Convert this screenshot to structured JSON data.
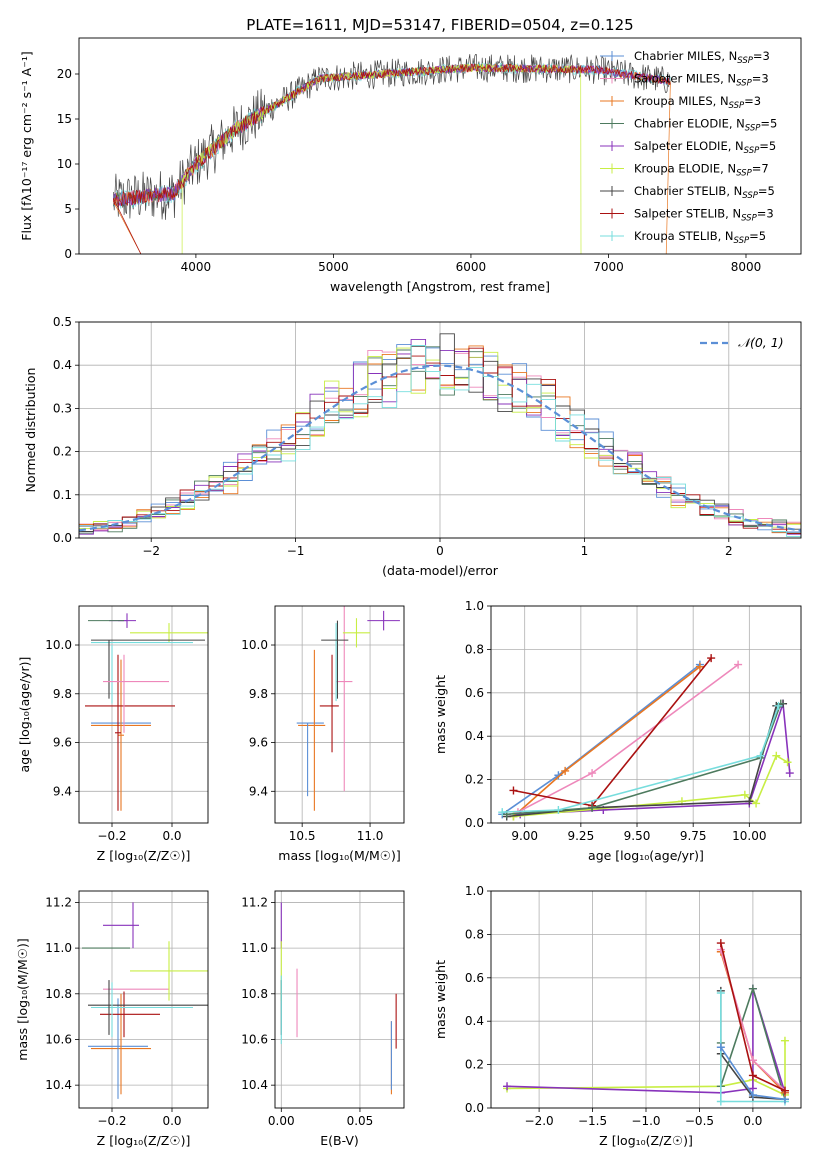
{
  "figure": {
    "title": "PLATE=1611, MJD=53147, FIBERID=0504, z=0.125"
  },
  "chart_data": [
    {
      "id": "spectrum",
      "type": "line",
      "xlabel": "wavelength [Angstrom, rest frame]",
      "ylabel": "Flux [fλ10⁻¹⁷ erg cm⁻² s⁻¹ A⁻¹]",
      "xlim": [
        3150,
        8400
      ],
      "ylim": [
        0,
        24
      ],
      "xticks": [
        4000,
        5000,
        6000,
        7000,
        8000
      ],
      "yticks": [
        0,
        5,
        10,
        15,
        20
      ],
      "grid": false,
      "legend_position": "top-right",
      "legend": [
        {
          "label": "Chabrier MILES, N_SSP=3",
          "main": "Chabrier MILES, N",
          "sub": "SSP",
          "tail": "=3",
          "color": "#5b8fd6",
          "marker": "+"
        },
        {
          "label": "Salpeter MILES, N_SSP=3",
          "main": "Salpeter MILES, N",
          "sub": "SSP",
          "tail": "=3",
          "color": "#ee88bb",
          "marker": "+"
        },
        {
          "label": "Kroupa MILES, N_SSP=3",
          "main": "Kroupa MILES, N",
          "sub": "SSP",
          "tail": "=3",
          "color": "#e87722",
          "marker": "+"
        },
        {
          "label": "Chabrier ELODIE, N_SSP=5",
          "main": "Chabrier ELODIE, N",
          "sub": "SSP",
          "tail": "=5",
          "color": "#4d7a5e",
          "marker": "+"
        },
        {
          "label": "Salpeter ELODIE, N_SSP=5",
          "main": "Salpeter ELODIE, N",
          "sub": "SSP",
          "tail": "=5",
          "color": "#8833bb",
          "marker": "+"
        },
        {
          "label": "Kroupa ELODIE, N_SSP=7",
          "main": "Kroupa ELODIE, N",
          "sub": "SSP",
          "tail": "=7",
          "color": "#c8ee44",
          "marker": "+"
        },
        {
          "label": "Chabrier STELIB, N_SSP=5",
          "main": "Chabrier STELIB, N",
          "sub": "SSP",
          "tail": "=5",
          "color": "#444444",
          "marker": "+"
        },
        {
          "label": "Salpeter STELIB, N_SSP=3",
          "main": "Salpeter STELIB, N",
          "sub": "SSP",
          "tail": "=3",
          "color": "#aa1111",
          "marker": "+"
        },
        {
          "label": "Kroupa STELIB, N_SSP=5",
          "main": "Kroupa STELIB, N",
          "sub": "SSP",
          "tail": "=5",
          "color": "#77dddd",
          "marker": "+"
        }
      ]
    },
    {
      "id": "residuals",
      "type": "histogram",
      "xlabel": "(data-model)/error",
      "ylabel": "Normed distribution",
      "xlim": [
        -2.5,
        2.5
      ],
      "ylim": [
        0,
        0.5
      ],
      "xticks": [
        -2,
        -1,
        0,
        1,
        2
      ],
      "yticks": [
        0.0,
        0.1,
        0.2,
        0.3,
        0.4,
        0.5
      ],
      "grid": true,
      "bin_width": 0.1,
      "reference_curve": {
        "label": "𝒩(0, 1)",
        "mean": 0,
        "sigma": 1,
        "color": "#5b8fd6",
        "style": "dashed"
      },
      "legend_position": "top-right"
    },
    {
      "id": "age_vs_Z",
      "type": "errorbar",
      "xlabel": "Z [log₁₀(Z/Z☉)]",
      "ylabel": "age  [log₁₀(age/yr)]",
      "xlim": [
        -0.31,
        0.12
      ],
      "ylim": [
        9.27,
        10.16
      ],
      "xticks": [
        -0.2,
        0.0
      ],
      "yticks": [
        9.4,
        9.6,
        9.8,
        10.0
      ],
      "grid": true,
      "points": [
        {
          "x": -0.17,
          "xerr": 0.1,
          "y": 9.68,
          "yerr": 0.0,
          "color": "#5b8fd6"
        },
        {
          "x": -0.17,
          "xerr": 0.1,
          "y": 9.67,
          "yerr": 0.0,
          "color": "#e87722"
        },
        {
          "x": -0.17,
          "xerr": 0.01,
          "y": 9.63,
          "yerr": 0.31,
          "color": "#e87722"
        },
        {
          "x": -0.18,
          "xerr": 0.01,
          "y": 9.64,
          "yerr": 0.32,
          "color": "#aa1111"
        },
        {
          "x": -0.18,
          "xerr": 0.03,
          "y": 10.1,
          "yerr": 0.0,
          "color": "#8833bb"
        },
        {
          "x": -0.15,
          "xerr": 0.03,
          "y": 10.1,
          "yerr": 0.03,
          "color": "#8833bb"
        },
        {
          "x": -0.22,
          "xerr": 0.06,
          "y": 10.1,
          "yerr": 0.0,
          "color": "#4d7a5e"
        },
        {
          "x": -0.01,
          "xerr": 0.13,
          "y": 10.05,
          "yerr": 0.04,
          "color": "#c8ee44"
        },
        {
          "x": -0.08,
          "xerr": 0.19,
          "y": 10.02,
          "yerr": 0.0,
          "color": "#444444"
        },
        {
          "x": -0.1,
          "xerr": 0.17,
          "y": 10.01,
          "yerr": 0.0,
          "color": "#77dddd"
        },
        {
          "x": -0.21,
          "xerr": 0.0,
          "y": 9.9,
          "yerr": 0.12,
          "color": "#444444"
        },
        {
          "x": -0.2,
          "xerr": 0.0,
          "y": 9.88,
          "yerr": 0.12,
          "color": "#77dddd"
        },
        {
          "x": -0.12,
          "xerr": 0.11,
          "y": 9.85,
          "yerr": 0.0,
          "color": "#ee88bb"
        },
        {
          "x": -0.14,
          "xerr": 0.15,
          "y": 9.75,
          "yerr": 0.0,
          "color": "#aa1111"
        },
        {
          "x": -0.16,
          "xerr": 0.0,
          "y": 9.8,
          "yerr": 0.16,
          "color": "#ee88bb"
        }
      ]
    },
    {
      "id": "age_vs_mass",
      "type": "errorbar",
      "xlabel": "mass [log₁₀(M/M☉)]",
      "ylabel": "",
      "xlim": [
        10.3,
        11.25
      ],
      "ylim": [
        9.27,
        10.16
      ],
      "xticks": [
        10.5,
        11.0
      ],
      "yticks": [
        9.4,
        9.6,
        9.8,
        10.0
      ],
      "grid": true,
      "points": [
        {
          "x": 10.56,
          "xerr": 0.1,
          "y": 9.68,
          "yerr": 0.0,
          "color": "#5b8fd6"
        },
        {
          "x": 10.57,
          "xerr": 0.1,
          "y": 9.67,
          "yerr": 0.0,
          "color": "#e87722"
        },
        {
          "x": 10.59,
          "xerr": 0.0,
          "y": 9.65,
          "yerr": 0.33,
          "color": "#e87722"
        },
        {
          "x": 10.7,
          "xerr": 0.07,
          "y": 9.75,
          "yerr": 0.0,
          "color": "#aa1111"
        },
        {
          "x": 10.72,
          "xerr": 0.0,
          "y": 9.76,
          "yerr": 0.2,
          "color": "#aa1111"
        },
        {
          "x": 10.81,
          "xerr": 0.06,
          "y": 9.85,
          "yerr": 0.0,
          "color": "#ee88bb"
        },
        {
          "x": 10.81,
          "xerr": 0.0,
          "y": 9.78,
          "yerr": 0.38,
          "color": "#ee88bb"
        },
        {
          "x": 10.76,
          "xerr": 0.0,
          "y": 9.94,
          "yerr": 0.16,
          "color": "#444444"
        },
        {
          "x": 10.75,
          "xerr": 0.0,
          "y": 9.93,
          "yerr": 0.16,
          "color": "#77dddd"
        },
        {
          "x": 10.74,
          "xerr": 0.1,
          "y": 10.02,
          "yerr": 0.0,
          "color": "#444444"
        },
        {
          "x": 10.9,
          "xerr": 0.1,
          "y": 10.05,
          "yerr": 0.06,
          "color": "#c8ee44"
        },
        {
          "x": 11.1,
          "xerr": 0.12,
          "y": 10.1,
          "yerr": 0.04,
          "color": "#8833bb"
        },
        {
          "x": 10.54,
          "xerr": 0.0,
          "y": 9.53,
          "yerr": 0.15,
          "color": "#5b8fd6"
        }
      ]
    },
    {
      "id": "massweight_vs_age",
      "type": "line",
      "xlabel": "age  [log₁₀(age/yr)]",
      "ylabel": "mass weight",
      "xlim": [
        8.85,
        10.23
      ],
      "ylim": [
        0,
        1.0
      ],
      "xticks": [
        9.0,
        9.25,
        9.5,
        9.75,
        10.0
      ],
      "yticks": [
        0.0,
        0.2,
        0.4,
        0.6,
        0.8,
        1.0
      ],
      "grid": true,
      "series": [
        {
          "color": "#5b8fd6",
          "x": [
            8.9,
            9.15,
            9.78
          ],
          "y": [
            0.04,
            0.22,
            0.73
          ]
        },
        {
          "color": "#e87722",
          "x": [
            8.95,
            9.18,
            9.78
          ],
          "y": [
            0.03,
            0.24,
            0.72
          ]
        },
        {
          "color": "#ee88bb",
          "x": [
            8.97,
            9.3,
            9.95
          ],
          "y": [
            0.05,
            0.23,
            0.73
          ]
        },
        {
          "color": "#aa1111",
          "x": [
            8.95,
            9.3,
            9.83
          ],
          "y": [
            0.15,
            0.08,
            0.76
          ]
        },
        {
          "color": "#8833bb",
          "x": [
            8.98,
            9.35,
            10.0,
            10.15,
            10.18
          ],
          "y": [
            0.04,
            0.06,
            0.09,
            0.55,
            0.23
          ]
        },
        {
          "color": "#c8ee44",
          "x": [
            8.95,
            9.7,
            9.98,
            10.03,
            10.12,
            10.17
          ],
          "y": [
            0.03,
            0.1,
            0.13,
            0.09,
            0.31,
            0.28
          ]
        },
        {
          "color": "#444444",
          "x": [
            8.92,
            9.3,
            10.0,
            10.12,
            10.15
          ],
          "y": [
            0.03,
            0.07,
            0.1,
            0.54,
            0.55
          ]
        },
        {
          "color": "#4d7a5e",
          "x": [
            8.92,
            9.3,
            10.05,
            10.14
          ],
          "y": [
            0.04,
            0.07,
            0.3,
            0.55
          ]
        },
        {
          "color": "#77dddd",
          "x": [
            8.9,
            9.15,
            10.05,
            10.13
          ],
          "y": [
            0.05,
            0.06,
            0.31,
            0.54
          ]
        }
      ]
    },
    {
      "id": "mass_vs_Z",
      "type": "errorbar",
      "xlabel": "Z [log₁₀(Z/Z☉)]",
      "ylabel": "mass [log₁₀(M/M☉)]",
      "xlim": [
        -0.31,
        0.12
      ],
      "ylim": [
        10.3,
        11.25
      ],
      "xticks": [
        -0.2,
        0.0
      ],
      "yticks": [
        10.4,
        10.6,
        10.8,
        11.0,
        11.2
      ],
      "grid": true,
      "points": [
        {
          "x": -0.18,
          "xerr": 0.1,
          "y": 10.57,
          "yerr": 0.0,
          "color": "#5b8fd6"
        },
        {
          "x": -0.17,
          "xerr": 0.1,
          "y": 10.56,
          "yerr": 0.0,
          "color": "#e87722"
        },
        {
          "x": -0.17,
          "xerr": 0.0,
          "y": 10.58,
          "yerr": 0.22,
          "color": "#e87722"
        },
        {
          "x": -0.18,
          "xerr": 0.0,
          "y": 10.56,
          "yerr": 0.22,
          "color": "#5b8fd6"
        },
        {
          "x": -0.14,
          "xerr": 0.1,
          "y": 10.71,
          "yerr": 0.0,
          "color": "#aa1111"
        },
        {
          "x": -0.16,
          "xerr": 0.0,
          "y": 10.71,
          "yerr": 0.1,
          "color": "#aa1111"
        },
        {
          "x": -0.12,
          "xerr": 0.11,
          "y": 10.82,
          "yerr": 0.0,
          "color": "#ee88bb"
        },
        {
          "x": -0.08,
          "xerr": 0.2,
          "y": 10.75,
          "yerr": 0.0,
          "color": "#444444"
        },
        {
          "x": -0.1,
          "xerr": 0.17,
          "y": 10.74,
          "yerr": 0.0,
          "color": "#77dddd"
        },
        {
          "x": -0.21,
          "xerr": 0.0,
          "y": 10.74,
          "yerr": 0.12,
          "color": "#444444"
        },
        {
          "x": -0.2,
          "xerr": 0.0,
          "y": 10.73,
          "yerr": 0.12,
          "color": "#77dddd"
        },
        {
          "x": -0.01,
          "xerr": 0.13,
          "y": 10.9,
          "yerr": 0.13,
          "color": "#c8ee44"
        },
        {
          "x": -0.22,
          "xerr": 0.08,
          "y": 11.0,
          "yerr": 0.0,
          "color": "#4d7a5e"
        },
        {
          "x": -0.17,
          "xerr": 0.06,
          "y": 11.1,
          "yerr": 0.0,
          "color": "#8833bb"
        },
        {
          "x": -0.13,
          "xerr": 0.0,
          "y": 11.1,
          "yerr": 0.1,
          "color": "#8833bb"
        }
      ]
    },
    {
      "id": "mass_vs_ebv",
      "type": "errorbar",
      "xlabel": "E(B-V)",
      "ylabel": "",
      "xlim": [
        -0.004,
        0.078
      ],
      "ylim": [
        10.3,
        11.25
      ],
      "xticks": [
        0.0,
        0.05
      ],
      "yticks": [
        10.4,
        10.6,
        10.8,
        11.0,
        11.2
      ],
      "grid": true,
      "points": [
        {
          "x": 0.0,
          "xerr": 0.0,
          "y": 11.1,
          "yerr": 0.1,
          "color": "#8833bb"
        },
        {
          "x": 0.0,
          "xerr": 0.0,
          "y": 10.9,
          "yerr": 0.13,
          "color": "#c8ee44"
        },
        {
          "x": 0.0,
          "xerr": 0.0,
          "y": 10.74,
          "yerr": 0.12,
          "color": "#444444"
        },
        {
          "x": 0.0,
          "xerr": 0.0,
          "y": 10.73,
          "yerr": 0.15,
          "color": "#77dddd"
        },
        {
          "x": 0.01,
          "xerr": 0.0,
          "y": 10.76,
          "yerr": 0.15,
          "color": "#ee88bb"
        },
        {
          "x": 0.07,
          "xerr": 0.0,
          "y": 10.52,
          "yerr": 0.16,
          "color": "#e87722"
        },
        {
          "x": 0.07,
          "xerr": 0.0,
          "y": 10.53,
          "yerr": 0.15,
          "color": "#5b8fd6"
        },
        {
          "x": 0.073,
          "xerr": 0.0,
          "y": 10.68,
          "yerr": 0.12,
          "color": "#aa1111"
        }
      ]
    },
    {
      "id": "massweight_vs_Z",
      "type": "line",
      "xlabel": "Z [log₁₀(Z/Z☉)]",
      "ylabel": "mass weight",
      "xlim": [
        -2.45,
        0.45
      ],
      "ylim": [
        0,
        1.0
      ],
      "xticks": [
        -2.0,
        -1.5,
        -1.0,
        -0.5,
        0.0
      ],
      "yticks": [
        0.0,
        0.2,
        0.4,
        0.6,
        0.8,
        1.0
      ],
      "grid": true,
      "series": [
        {
          "color": "#c8ee44",
          "x": [
            -2.3,
            -0.3,
            0.0,
            0.3,
            0.3
          ],
          "y": [
            0.09,
            0.1,
            0.13,
            0.06,
            0.31
          ]
        },
        {
          "color": "#8833bb",
          "x": [
            -2.3,
            -0.3,
            0.0,
            0.0,
            0.3
          ],
          "y": [
            0.1,
            0.07,
            0.09,
            0.55,
            0.07
          ]
        },
        {
          "color": "#444444",
          "x": [
            -0.3,
            -0.3,
            0.0,
            0.3
          ],
          "y": [
            0.54,
            0.25,
            0.05,
            0.04
          ]
        },
        {
          "color": "#4d7a5e",
          "x": [
            -0.3,
            -0.3,
            0.0,
            0.3
          ],
          "y": [
            0.3,
            0.1,
            0.55,
            0.04
          ]
        },
        {
          "color": "#77dddd",
          "x": [
            -0.3,
            -0.3,
            0.3
          ],
          "y": [
            0.53,
            0.03,
            0.03
          ]
        },
        {
          "color": "#5b8fd6",
          "x": [
            -0.3,
            0.0,
            0.3
          ],
          "y": [
            0.28,
            0.06,
            0.04
          ]
        },
        {
          "color": "#e87722",
          "x": [
            -0.3,
            0.0,
            0.3
          ],
          "y": [
            0.72,
            0.22,
            0.07
          ]
        },
        {
          "color": "#ee88bb",
          "x": [
            -0.3,
            0.0,
            0.3
          ],
          "y": [
            0.73,
            0.22,
            0.08
          ]
        },
        {
          "color": "#aa1111",
          "x": [
            -0.3,
            0.0,
            0.3
          ],
          "y": [
            0.76,
            0.15,
            0.08
          ]
        }
      ]
    }
  ]
}
